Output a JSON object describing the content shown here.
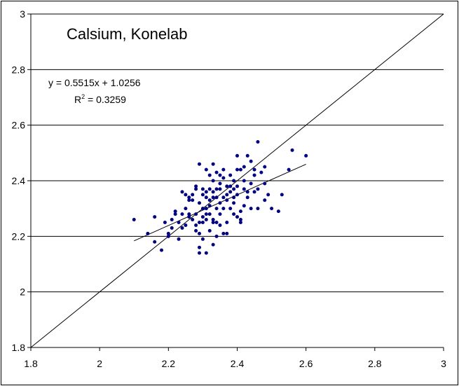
{
  "chart_data": {
    "type": "scatter",
    "title": "Calsium, Konelab",
    "xlabel": "",
    "ylabel": "",
    "xlim": [
      1.8,
      3.0
    ],
    "ylim": [
      1.8,
      3.0
    ],
    "xticks": [
      "1.8",
      "2",
      "2.2",
      "2.4",
      "2.6",
      "2.8",
      "3"
    ],
    "yticks": [
      "1.8",
      "2",
      "2.2",
      "2.4",
      "2.6",
      "2.8",
      "3"
    ],
    "horizontal_grid": true,
    "vertical_grid": false,
    "colors": {
      "points": "#000080",
      "lines": "#000000"
    },
    "trendline": {
      "equation": "y = 0.5515x + 1.0256",
      "r_squared_prefix": "R",
      "r_squared_sup": "2",
      "r_squared_value": " = 0.3259",
      "slope": 0.5515,
      "intercept": 1.0256,
      "x_range": [
        2.1,
        2.6
      ]
    },
    "identity_line": {
      "from": [
        1.8,
        1.8
      ],
      "to": [
        3.0,
        3.0
      ]
    },
    "series": [
      {
        "points": [
          [
            2.1,
            2.26
          ],
          [
            2.14,
            2.21
          ],
          [
            2.16,
            2.27
          ],
          [
            2.16,
            2.18
          ],
          [
            2.18,
            2.15
          ],
          [
            2.19,
            2.25
          ],
          [
            2.2,
            2.2
          ],
          [
            2.2,
            2.21
          ],
          [
            2.21,
            2.23
          ],
          [
            2.22,
            2.29
          ],
          [
            2.22,
            2.28
          ],
          [
            2.23,
            2.19
          ],
          [
            2.23,
            2.25
          ],
          [
            2.24,
            2.23
          ],
          [
            2.24,
            2.36
          ],
          [
            2.25,
            2.24
          ],
          [
            2.25,
            2.35
          ],
          [
            2.25,
            2.3
          ],
          [
            2.26,
            2.34
          ],
          [
            2.26,
            2.27
          ],
          [
            2.26,
            2.33
          ],
          [
            2.27,
            2.26
          ],
          [
            2.27,
            2.35
          ],
          [
            2.28,
            2.28
          ],
          [
            2.28,
            2.24
          ],
          [
            2.28,
            2.38
          ],
          [
            2.28,
            2.22
          ],
          [
            2.29,
            2.46
          ],
          [
            2.29,
            2.25
          ],
          [
            2.29,
            2.16
          ],
          [
            2.29,
            2.14
          ],
          [
            2.29,
            2.21
          ],
          [
            2.3,
            2.3
          ],
          [
            2.3,
            2.25
          ],
          [
            2.3,
            2.27
          ],
          [
            2.3,
            2.35
          ],
          [
            2.3,
            2.37
          ],
          [
            2.31,
            2.26
          ],
          [
            2.31,
            2.3
          ],
          [
            2.31,
            2.44
          ],
          [
            2.31,
            2.14
          ],
          [
            2.31,
            2.28
          ],
          [
            2.31,
            2.34
          ],
          [
            2.32,
            2.31
          ],
          [
            2.32,
            2.37
          ],
          [
            2.32,
            2.22
          ],
          [
            2.32,
            2.28
          ],
          [
            2.32,
            2.42
          ],
          [
            2.33,
            2.4
          ],
          [
            2.33,
            2.46
          ],
          [
            2.33,
            2.26
          ],
          [
            2.33,
            2.17
          ],
          [
            2.33,
            2.34
          ],
          [
            2.33,
            2.36
          ],
          [
            2.34,
            2.37
          ],
          [
            2.34,
            2.3
          ],
          [
            2.34,
            2.2
          ],
          [
            2.34,
            2.43
          ],
          [
            2.34,
            2.25
          ],
          [
            2.35,
            2.37
          ],
          [
            2.35,
            2.32
          ],
          [
            2.35,
            2.28
          ],
          [
            2.35,
            2.42
          ],
          [
            2.35,
            2.39
          ],
          [
            2.36,
            2.44
          ],
          [
            2.36,
            2.21
          ],
          [
            2.36,
            2.3
          ],
          [
            2.36,
            2.34
          ],
          [
            2.37,
            2.38
          ],
          [
            2.37,
            2.25
          ],
          [
            2.37,
            2.21
          ],
          [
            2.37,
            2.35
          ],
          [
            2.38,
            2.36
          ],
          [
            2.38,
            2.3
          ],
          [
            2.38,
            2.38
          ],
          [
            2.38,
            2.42
          ],
          [
            2.39,
            2.34
          ],
          [
            2.39,
            2.4
          ],
          [
            2.39,
            2.32
          ],
          [
            2.4,
            2.27
          ],
          [
            2.4,
            2.49
          ],
          [
            2.4,
            2.38
          ],
          [
            2.4,
            2.44
          ],
          [
            2.41,
            2.25
          ],
          [
            2.41,
            2.29
          ],
          [
            2.41,
            2.26
          ],
          [
            2.41,
            2.44
          ],
          [
            2.42,
            2.37
          ],
          [
            2.42,
            2.45
          ],
          [
            2.42,
            2.4
          ],
          [
            2.43,
            2.49
          ],
          [
            2.43,
            2.36
          ],
          [
            2.43,
            2.34
          ],
          [
            2.44,
            2.47
          ],
          [
            2.44,
            2.39
          ],
          [
            2.45,
            2.42
          ],
          [
            2.45,
            2.44
          ],
          [
            2.46,
            2.54
          ],
          [
            2.46,
            2.37
          ],
          [
            2.46,
            2.3
          ],
          [
            2.47,
            2.43
          ],
          [
            2.48,
            2.33
          ],
          [
            2.48,
            2.39
          ],
          [
            2.48,
            2.45
          ],
          [
            2.49,
            2.35
          ],
          [
            2.5,
            2.3
          ],
          [
            2.52,
            2.29
          ],
          [
            2.53,
            2.35
          ],
          [
            2.55,
            2.44
          ],
          [
            2.56,
            2.51
          ],
          [
            2.6,
            2.49
          ],
          [
            2.27,
            2.33
          ],
          [
            2.26,
            2.28
          ],
          [
            2.35,
            2.24
          ],
          [
            2.39,
            2.28
          ],
          [
            2.44,
            2.3
          ],
          [
            2.36,
            2.41
          ],
          [
            2.29,
            2.32
          ],
          [
            2.24,
            2.28
          ],
          [
            2.21,
            2.26
          ],
          [
            2.45,
            2.36
          ],
          [
            2.32,
            2.33
          ],
          [
            2.37,
            2.33
          ],
          [
            2.42,
            2.31
          ],
          [
            2.39,
            2.37
          ],
          [
            2.31,
            2.36
          ],
          [
            2.3,
            2.19
          ],
          [
            2.34,
            2.34
          ],
          [
            2.4,
            2.35
          ],
          [
            2.28,
            2.37
          ],
          [
            2.33,
            2.25
          ]
        ]
      }
    ]
  }
}
